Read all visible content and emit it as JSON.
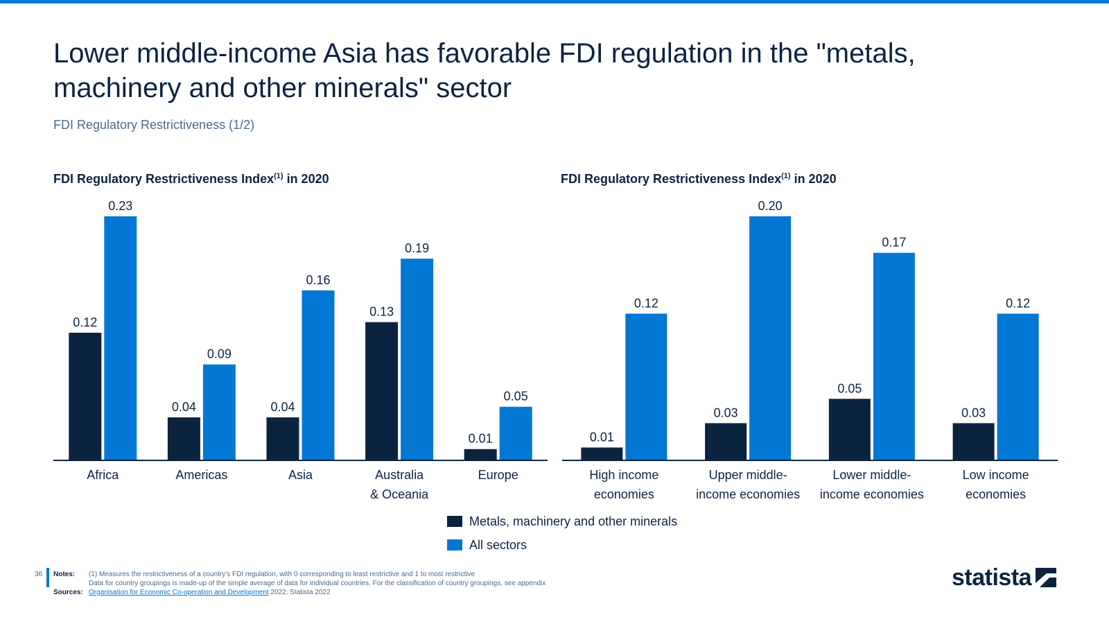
{
  "header": {
    "title": "Lower middle-income Asia has favorable FDI regulation in the \"metals, machinery and other minerals\" sector",
    "subtitle": "FDI Regulatory Restrictiveness (1/2)"
  },
  "colors": {
    "accent": "#0277d4",
    "dark": "#0c2340",
    "axis": "#0c2340"
  },
  "chart_data": [
    {
      "type": "bar",
      "title": "FDI Regulatory Restrictiveness Index",
      "title_sup": "(1)",
      "title_suffix": " in 2020",
      "categories": [
        [
          "Africa"
        ],
        [
          "Americas"
        ],
        [
          "Asia"
        ],
        [
          "Australia",
          "& Oceania"
        ],
        [
          "Europe"
        ]
      ],
      "series": [
        {
          "name": "Metals, machinery and other minerals",
          "color": "#0c2340",
          "values": [
            0.12,
            0.04,
            0.04,
            0.13,
            0.01
          ],
          "labels": [
            "0.12",
            "0.04",
            "0.04",
            "0.13",
            "0.01"
          ]
        },
        {
          "name": "All sectors",
          "color": "#0277d4",
          "values": [
            0.23,
            0.09,
            0.16,
            0.19,
            0.05
          ],
          "labels": [
            "0.23",
            "0.09",
            "0.16",
            "0.19",
            "0.05"
          ]
        }
      ],
      "ylim": [
        0,
        0.23
      ],
      "xlabel": "",
      "ylabel": "",
      "grid": false
    },
    {
      "type": "bar",
      "title": "FDI Regulatory Restrictiveness Index",
      "title_sup": "(1)",
      "title_suffix": " in 2020",
      "categories": [
        [
          "High income",
          "economies"
        ],
        [
          "Upper middle-",
          "income economies"
        ],
        [
          "Lower middle-",
          "income economies"
        ],
        [
          "Low income",
          "economies"
        ]
      ],
      "series": [
        {
          "name": "Metals, machinery and other minerals",
          "color": "#0c2340",
          "values": [
            0.01,
            0.03,
            0.05,
            0.03
          ],
          "labels": [
            "0.01",
            "0.03",
            "0.05",
            "0.03"
          ]
        },
        {
          "name": "All sectors",
          "color": "#0277d4",
          "values": [
            0.12,
            0.2,
            0.17,
            0.12
          ],
          "labels": [
            "0.12",
            "0.20",
            "0.17",
            "0.12"
          ]
        }
      ],
      "ylim": [
        0,
        0.2
      ],
      "xlabel": "",
      "ylabel": "",
      "grid": false
    }
  ],
  "legend": [
    {
      "label": "Metals, machinery and other minerals",
      "color": "#0c2340"
    },
    {
      "label": "All sectors",
      "color": "#0277d4"
    }
  ],
  "footer": {
    "page_number": "36",
    "notes_label": "Notes:",
    "notes_line1": "(1) Measures the restrictiveness of a country's FDI regulation, with 0 corresponding to least restrictive and 1 to most restrictive",
    "notes_line2": "Data for country groupings is made-up of the simple average of data for individual countries. For the classification of country groupings, see appendix",
    "sources_label": "Sources:",
    "sources_link": "Organisation for Economic Co-operation and Development",
    "sources_rest": " 2022; Statista 2022"
  },
  "logo": {
    "text": "statista",
    "icon": "statista-logo-icon"
  }
}
